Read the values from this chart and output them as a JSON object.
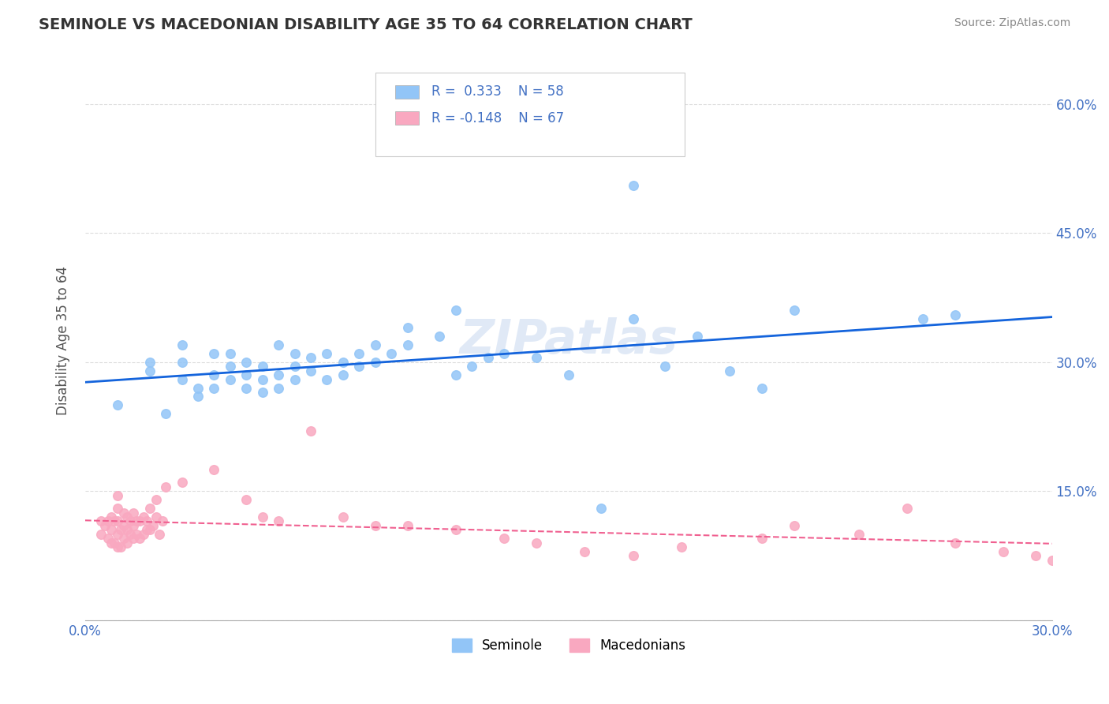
{
  "title": "SEMINOLE VS MACEDONIAN DISABILITY AGE 35 TO 64 CORRELATION CHART",
  "source": "Source: ZipAtlas.com",
  "ylabel": "Disability Age 35 to 64",
  "y_ticks": [
    0.0,
    0.15,
    0.3,
    0.45,
    0.6
  ],
  "y_tick_labels": [
    "",
    "15.0%",
    "30.0%",
    "45.0%",
    "60.0%"
  ],
  "x_min": 0.0,
  "x_max": 0.3,
  "y_min": 0.0,
  "y_max": 0.65,
  "seminole_color": "#92C5F7",
  "macedonian_color": "#F9A8C0",
  "seminole_line_color": "#1464DC",
  "macedonian_line_color": "#F06090",
  "watermark": "ZIPatlas",
  "background_color": "#FFFFFF",
  "grid_color": "#DDDDDD",
  "title_color": "#333333",
  "axis_label_color": "#4472C4",
  "seminole_points_x": [
    0.01,
    0.02,
    0.02,
    0.025,
    0.03,
    0.03,
    0.03,
    0.035,
    0.035,
    0.04,
    0.04,
    0.04,
    0.045,
    0.045,
    0.045,
    0.05,
    0.05,
    0.05,
    0.055,
    0.055,
    0.055,
    0.06,
    0.06,
    0.06,
    0.065,
    0.065,
    0.065,
    0.07,
    0.07,
    0.075,
    0.075,
    0.08,
    0.08,
    0.085,
    0.085,
    0.09,
    0.09,
    0.095,
    0.1,
    0.1,
    0.11,
    0.115,
    0.12,
    0.125,
    0.13,
    0.14,
    0.15,
    0.16,
    0.17,
    0.18,
    0.19,
    0.2,
    0.21,
    0.115,
    0.17,
    0.22,
    0.26,
    0.27
  ],
  "seminole_points_y": [
    0.25,
    0.29,
    0.3,
    0.24,
    0.28,
    0.3,
    0.32,
    0.26,
    0.27,
    0.27,
    0.285,
    0.31,
    0.28,
    0.295,
    0.31,
    0.27,
    0.285,
    0.3,
    0.265,
    0.28,
    0.295,
    0.27,
    0.285,
    0.32,
    0.28,
    0.295,
    0.31,
    0.29,
    0.305,
    0.28,
    0.31,
    0.285,
    0.3,
    0.295,
    0.31,
    0.3,
    0.32,
    0.31,
    0.32,
    0.34,
    0.33,
    0.285,
    0.295,
    0.305,
    0.31,
    0.305,
    0.285,
    0.13,
    0.35,
    0.295,
    0.33,
    0.29,
    0.27,
    0.36,
    0.505,
    0.36,
    0.35,
    0.355
  ],
  "macedonian_points_x": [
    0.005,
    0.005,
    0.006,
    0.007,
    0.007,
    0.008,
    0.008,
    0.008,
    0.009,
    0.009,
    0.01,
    0.01,
    0.01,
    0.01,
    0.01,
    0.011,
    0.011,
    0.012,
    0.012,
    0.012,
    0.013,
    0.013,
    0.013,
    0.014,
    0.014,
    0.015,
    0.015,
    0.015,
    0.016,
    0.016,
    0.017,
    0.017,
    0.018,
    0.018,
    0.019,
    0.019,
    0.02,
    0.02,
    0.021,
    0.022,
    0.022,
    0.023,
    0.024,
    0.025,
    0.03,
    0.04,
    0.05,
    0.055,
    0.06,
    0.07,
    0.08,
    0.09,
    0.1,
    0.115,
    0.13,
    0.14,
    0.155,
    0.17,
    0.185,
    0.21,
    0.22,
    0.24,
    0.255,
    0.27,
    0.285,
    0.295,
    0.3
  ],
  "macedonian_points_y": [
    0.1,
    0.115,
    0.11,
    0.095,
    0.115,
    0.09,
    0.105,
    0.12,
    0.09,
    0.115,
    0.085,
    0.1,
    0.115,
    0.13,
    0.145,
    0.085,
    0.105,
    0.095,
    0.11,
    0.125,
    0.09,
    0.105,
    0.12,
    0.1,
    0.115,
    0.095,
    0.11,
    0.125,
    0.1,
    0.115,
    0.095,
    0.115,
    0.1,
    0.12,
    0.105,
    0.115,
    0.105,
    0.13,
    0.11,
    0.12,
    0.14,
    0.1,
    0.115,
    0.155,
    0.16,
    0.175,
    0.14,
    0.12,
    0.115,
    0.22,
    0.12,
    0.11,
    0.11,
    0.105,
    0.095,
    0.09,
    0.08,
    0.075,
    0.085,
    0.095,
    0.11,
    0.1,
    0.13,
    0.09,
    0.08,
    0.075,
    0.07
  ]
}
